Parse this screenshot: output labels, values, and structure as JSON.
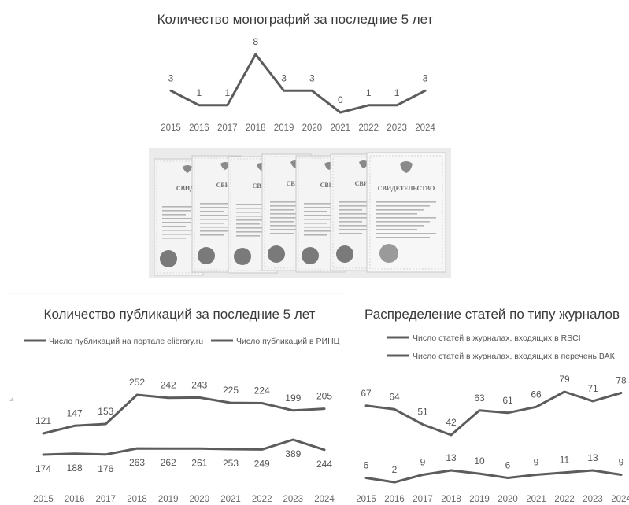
{
  "chart_data": [
    {
      "type": "line",
      "title": "Количество монографий за последние 5 лет",
      "categories": [
        "2015",
        "2016",
        "2017",
        "2018",
        "2019",
        "2020",
        "2021",
        "2022",
        "2023",
        "2024"
      ],
      "series": [
        {
          "values": [
            3,
            1,
            1,
            8,
            3,
            3,
            0,
            1,
            1,
            3
          ]
        }
      ],
      "ylim": [
        0,
        8
      ],
      "grid": false,
      "line_color": "#5c5c5c"
    },
    {
      "type": "line",
      "title": "Количество публикаций за последние 5 лет",
      "categories": [
        "2015",
        "2016",
        "2017",
        "2018",
        "2019",
        "2020",
        "2021",
        "2022",
        "2023",
        "2024"
      ],
      "series": [
        {
          "name": "Число публикаций на портале elibrary.ru",
          "values": [
            174,
            188,
            176,
            263,
            262,
            261,
            253,
            249,
            389,
            244
          ]
        },
        {
          "name": "Число публикаций в РИНЦ",
          "values": [
            121,
            147,
            153,
            252,
            242,
            243,
            225,
            224,
            199,
            205
          ]
        }
      ],
      "legend": "top",
      "grid": false,
      "line_color": "#5c5c5c"
    },
    {
      "type": "line",
      "title": "Распределение статей по типу журналов",
      "categories": [
        "2015",
        "2016",
        "2017",
        "2018",
        "2019",
        "2020",
        "2021",
        "2022",
        "2023",
        "2024"
      ],
      "series": [
        {
          "name": "Число статей в журналах, входящих в RSCI",
          "values": [
            6,
            2,
            9,
            13,
            10,
            6,
            9,
            11,
            13,
            9
          ]
        },
        {
          "name": "Число статей в журналах, входящих в перечень ВАК",
          "values": [
            67,
            64,
            51,
            42,
            63,
            61,
            66,
            79,
            71,
            78
          ]
        }
      ],
      "legend": "top",
      "grid": false,
      "line_color": "#5c5c5c"
    }
  ],
  "certificates": {
    "count": 7,
    "header_short": "СВИД",
    "header_short_alt": "СВИДЕ",
    "header_full": "СВИДЕТЕЛЬСТВО",
    "paper_color": "#f4f4f4",
    "seal_color": "#7a7a7a"
  }
}
